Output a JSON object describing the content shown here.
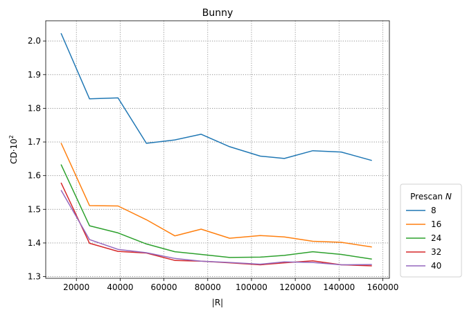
{
  "chart_data": {
    "type": "line",
    "title": "Bunny",
    "xlabel": "|R|",
    "ylabel": "CD·10",
    "ylabel_sup": "2",
    "xlim": [
      6000,
      163000
    ],
    "ylim": [
      1.295,
      2.06
    ],
    "xticks": [
      20000,
      40000,
      60000,
      80000,
      100000,
      120000,
      140000,
      160000
    ],
    "xtick_labels": [
      "20000",
      "40000",
      "60000",
      "80000",
      "100000",
      "120000",
      "140000",
      "160000"
    ],
    "yticks": [
      1.3,
      1.4,
      1.5,
      1.6,
      1.7,
      1.8,
      1.9,
      2.0
    ],
    "ytick_labels": [
      "1.3",
      "1.4",
      "1.5",
      "1.6",
      "1.7",
      "1.8",
      "1.9",
      "2.0"
    ],
    "grid": true,
    "legend": {
      "title": "Prescan",
      "title_var": "N",
      "placement": "lower-right-outside"
    },
    "x": [
      13000,
      26000,
      39000,
      52000,
      65000,
      77000,
      90000,
      104000,
      115000,
      128000,
      141000,
      155000
    ],
    "series": [
      {
        "name": "8",
        "color": "#1f77b4",
        "values": [
          2.023,
          1.828,
          1.831,
          1.696,
          1.706,
          1.723,
          1.686,
          1.658,
          1.651,
          1.674,
          1.67,
          1.645
        ]
      },
      {
        "name": "16",
        "color": "#ff7f0e",
        "values": [
          1.697,
          1.511,
          1.51,
          1.469,
          1.421,
          1.441,
          1.414,
          1.422,
          1.418,
          1.405,
          1.402,
          1.388
        ]
      },
      {
        "name": "24",
        "color": "#2ca02c",
        "values": [
          1.633,
          1.451,
          1.43,
          1.397,
          1.374,
          1.366,
          1.357,
          1.358,
          1.363,
          1.374,
          1.366,
          1.352
        ]
      },
      {
        "name": "32",
        "color": "#d62728",
        "values": [
          1.579,
          1.399,
          1.375,
          1.37,
          1.348,
          1.346,
          1.341,
          1.335,
          1.341,
          1.347,
          1.335,
          1.332
        ]
      },
      {
        "name": "40",
        "color": "#9467bd",
        "values": [
          1.557,
          1.41,
          1.381,
          1.371,
          1.354,
          1.346,
          1.342,
          1.337,
          1.344,
          1.342,
          1.335,
          1.336
        ]
      }
    ]
  }
}
